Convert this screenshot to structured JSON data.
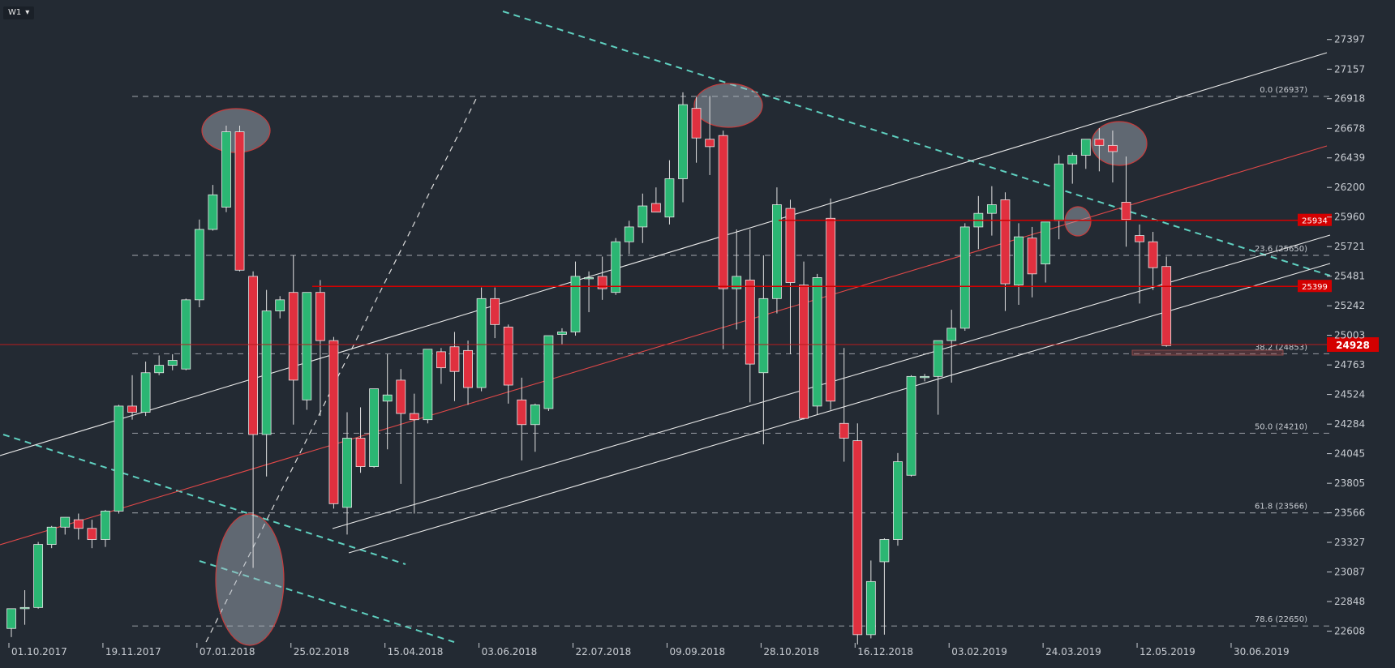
{
  "toolbar": {
    "timeframe": "W1",
    "dropdown_icon": "caret-down-icon"
  },
  "colors": {
    "background": "#232a33",
    "bull": "#2bb673",
    "bear": "#e0303f",
    "axis_text": "#c8ccd2",
    "grid_dash": "#8a8f96",
    "teal_trend": "#5fd0c0",
    "red_level": "#d40000",
    "channel": "#e8e8e8",
    "red_trend": "#e04848"
  },
  "chart_data": {
    "type": "candlestick",
    "timeframe": "W1",
    "ylim": [
      22520,
      27520
    ],
    "y_ticks": [
      "27397",
      "27157",
      "26918",
      "26678",
      "26439",
      "26200",
      "25960",
      "25721",
      "25481",
      "25242",
      "25003",
      "24763",
      "24524",
      "24284",
      "24045",
      "23805",
      "23566",
      "23327",
      "23087",
      "22848",
      "22608"
    ],
    "x_ticks": [
      "01.10.2017",
      "19.11.2017",
      "07.01.2018",
      "25.02.2018",
      "15.04.2018",
      "03.06.2018",
      "22.07.2018",
      "09.09.2018",
      "28.10.2018",
      "16.12.2018",
      "03.02.2019",
      "24.03.2019",
      "12.05.2019",
      "30.06.2019"
    ],
    "candles": [
      {
        "o": 22630,
        "h": 22760,
        "l": 22560,
        "c": 22790
      },
      {
        "o": 22790,
        "h": 22940,
        "l": 22660,
        "c": 22800
      },
      {
        "o": 22800,
        "h": 23330,
        "l": 22790,
        "c": 23310
      },
      {
        "o": 23310,
        "h": 23460,
        "l": 23280,
        "c": 23450
      },
      {
        "o": 23450,
        "h": 23530,
        "l": 23390,
        "c": 23530
      },
      {
        "o": 23510,
        "h": 23560,
        "l": 23350,
        "c": 23440
      },
      {
        "o": 23440,
        "h": 23510,
        "l": 23280,
        "c": 23350
      },
      {
        "o": 23350,
        "h": 23590,
        "l": 23290,
        "c": 23580
      },
      {
        "o": 23580,
        "h": 24440,
        "l": 23560,
        "c": 24430
      },
      {
        "o": 24430,
        "h": 24680,
        "l": 24320,
        "c": 24380
      },
      {
        "o": 24380,
        "h": 24790,
        "l": 24350,
        "c": 24700
      },
      {
        "o": 24700,
        "h": 24840,
        "l": 24680,
        "c": 24760
      },
      {
        "o": 24760,
        "h": 24850,
        "l": 24720,
        "c": 24800
      },
      {
        "o": 24730,
        "h": 25300,
        "l": 24720,
        "c": 25290
      },
      {
        "o": 25290,
        "h": 25940,
        "l": 25230,
        "c": 25860
      },
      {
        "o": 25860,
        "h": 26220,
        "l": 25850,
        "c": 26140
      },
      {
        "o": 26040,
        "h": 26700,
        "l": 26000,
        "c": 26650
      },
      {
        "o": 26650,
        "h": 26700,
        "l": 25520,
        "c": 25530
      },
      {
        "o": 25480,
        "h": 25520,
        "l": 23120,
        "c": 24200
      },
      {
        "o": 24200,
        "h": 25370,
        "l": 23860,
        "c": 25200
      },
      {
        "o": 25200,
        "h": 25320,
        "l": 25140,
        "c": 25290
      },
      {
        "o": 25350,
        "h": 25650,
        "l": 24280,
        "c": 24640
      },
      {
        "o": 24480,
        "h": 25350,
        "l": 24400,
        "c": 25350
      },
      {
        "o": 25350,
        "h": 25450,
        "l": 24350,
        "c": 24960
      },
      {
        "o": 24960,
        "h": 24990,
        "l": 23600,
        "c": 23640
      },
      {
        "o": 23610,
        "h": 24380,
        "l": 23390,
        "c": 24170
      },
      {
        "o": 24170,
        "h": 24420,
        "l": 23890,
        "c": 23940
      },
      {
        "o": 23940,
        "h": 24540,
        "l": 23930,
        "c": 24570
      },
      {
        "o": 24470,
        "h": 24850,
        "l": 24080,
        "c": 24520
      },
      {
        "o": 24640,
        "h": 24730,
        "l": 23800,
        "c": 24370
      },
      {
        "o": 24370,
        "h": 24530,
        "l": 23560,
        "c": 24320
      },
      {
        "o": 24320,
        "h": 24860,
        "l": 24290,
        "c": 24890
      },
      {
        "o": 24870,
        "h": 24900,
        "l": 24610,
        "c": 24740
      },
      {
        "o": 24910,
        "h": 25030,
        "l": 24470,
        "c": 24710
      },
      {
        "o": 24880,
        "h": 24960,
        "l": 24440,
        "c": 24580
      },
      {
        "o": 24580,
        "h": 25390,
        "l": 24550,
        "c": 25300
      },
      {
        "o": 25300,
        "h": 25390,
        "l": 24980,
        "c": 25090
      },
      {
        "o": 25070,
        "h": 25090,
        "l": 24450,
        "c": 24600
      },
      {
        "o": 24480,
        "h": 24660,
        "l": 23990,
        "c": 24280
      },
      {
        "o": 24280,
        "h": 24450,
        "l": 24060,
        "c": 24440
      },
      {
        "o": 24410,
        "h": 25000,
        "l": 24390,
        "c": 25000
      },
      {
        "o": 25010,
        "h": 25060,
        "l": 24930,
        "c": 25030
      },
      {
        "o": 25030,
        "h": 25600,
        "l": 25000,
        "c": 25480
      },
      {
        "o": 25470,
        "h": 25520,
        "l": 25190,
        "c": 25470
      },
      {
        "o": 25480,
        "h": 25640,
        "l": 25290,
        "c": 25380
      },
      {
        "o": 25350,
        "h": 25790,
        "l": 25330,
        "c": 25760
      },
      {
        "o": 25760,
        "h": 25930,
        "l": 25660,
        "c": 25880
      },
      {
        "o": 25880,
        "h": 26150,
        "l": 25750,
        "c": 26050
      },
      {
        "o": 26070,
        "h": 26200,
        "l": 26000,
        "c": 26000
      },
      {
        "o": 25960,
        "h": 26420,
        "l": 25900,
        "c": 26270
      },
      {
        "o": 26270,
        "h": 26970,
        "l": 26080,
        "c": 26870
      },
      {
        "o": 26840,
        "h": 26930,
        "l": 26400,
        "c": 26600
      },
      {
        "o": 26590,
        "h": 26940,
        "l": 26300,
        "c": 26530
      },
      {
        "o": 26620,
        "h": 26660,
        "l": 24890,
        "c": 25380
      },
      {
        "o": 25380,
        "h": 25860,
        "l": 25050,
        "c": 25480
      },
      {
        "o": 25450,
        "h": 25860,
        "l": 24460,
        "c": 24770
      },
      {
        "o": 24700,
        "h": 25650,
        "l": 24120,
        "c": 25300
      },
      {
        "o": 25300,
        "h": 26200,
        "l": 25180,
        "c": 26060
      },
      {
        "o": 26030,
        "h": 26100,
        "l": 24850,
        "c": 25430
      },
      {
        "o": 25410,
        "h": 25600,
        "l": 24320,
        "c": 24330
      },
      {
        "o": 24430,
        "h": 25500,
        "l": 24360,
        "c": 25470
      },
      {
        "o": 25950,
        "h": 26110,
        "l": 24400,
        "c": 24470
      },
      {
        "o": 24290,
        "h": 24900,
        "l": 23980,
        "c": 24170
      },
      {
        "o": 24150,
        "h": 24290,
        "l": 22500,
        "c": 22580
      },
      {
        "o": 22580,
        "h": 23180,
        "l": 22550,
        "c": 23010
      },
      {
        "o": 23170,
        "h": 23360,
        "l": 22580,
        "c": 23350
      },
      {
        "o": 23350,
        "h": 24050,
        "l": 23300,
        "c": 23980
      },
      {
        "o": 23870,
        "h": 24680,
        "l": 23860,
        "c": 24670
      },
      {
        "o": 24670,
        "h": 24690,
        "l": 24630,
        "c": 24670
      },
      {
        "o": 24670,
        "h": 24920,
        "l": 24360,
        "c": 24960
      },
      {
        "o": 24960,
        "h": 25210,
        "l": 24620,
        "c": 25060
      },
      {
        "o": 25060,
        "h": 25910,
        "l": 25040,
        "c": 25880
      },
      {
        "o": 25880,
        "h": 26130,
        "l": 25700,
        "c": 25990
      },
      {
        "o": 25990,
        "h": 26210,
        "l": 25810,
        "c": 26060
      },
      {
        "o": 26100,
        "h": 26160,
        "l": 25200,
        "c": 25420
      },
      {
        "o": 25410,
        "h": 25910,
        "l": 25250,
        "c": 25800
      },
      {
        "o": 25790,
        "h": 25880,
        "l": 25310,
        "c": 25500
      },
      {
        "o": 25580,
        "h": 25900,
        "l": 25430,
        "c": 25920
      },
      {
        "o": 25930,
        "h": 26460,
        "l": 25780,
        "c": 26390
      },
      {
        "o": 26390,
        "h": 26480,
        "l": 26230,
        "c": 26460
      },
      {
        "o": 26460,
        "h": 26560,
        "l": 26350,
        "c": 26590
      },
      {
        "o": 26590,
        "h": 26680,
        "l": 26330,
        "c": 26540
      },
      {
        "o": 26540,
        "h": 26660,
        "l": 26240,
        "c": 26490
      },
      {
        "o": 26080,
        "h": 26450,
        "l": 25720,
        "c": 25940
      },
      {
        "o": 25810,
        "h": 25900,
        "l": 25260,
        "c": 25760
      },
      {
        "o": 25760,
        "h": 25840,
        "l": 25370,
        "c": 25550
      },
      {
        "o": 25560,
        "h": 25640,
        "l": 24910,
        "c": 24920
      }
    ],
    "fib_levels": [
      {
        "label": "0.0 (26937)",
        "value": 26937
      },
      {
        "label": "23.6 (25650)",
        "value": 25650
      },
      {
        "label": "38.2 (24853)",
        "value": 24853
      },
      {
        "label": "50.0 (24210)",
        "value": 24210
      },
      {
        "label": "61.8 (23566)",
        "value": 23566
      },
      {
        "label": "78.6 (22650)",
        "value": 22650
      }
    ],
    "horizontal_levels": [
      {
        "label": "25934",
        "value": 25934
      },
      {
        "label": "25399",
        "value": 25399
      }
    ],
    "current_price": {
      "label": "24928",
      "value": 24928
    }
  }
}
